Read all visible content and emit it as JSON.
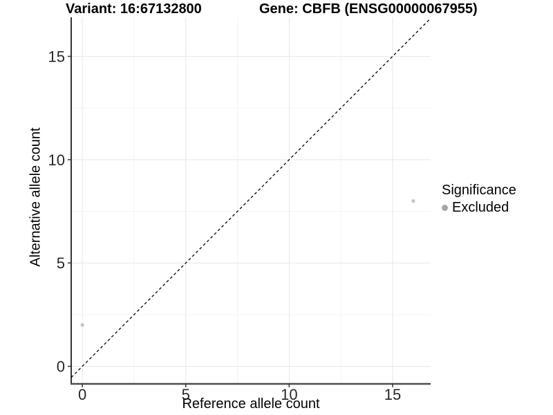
{
  "titles": {
    "left": "Variant: 16:67132800",
    "right": "Gene: CBFB (ENSG00000067955)"
  },
  "chart_data": {
    "type": "scatter",
    "xlabel": "Reference allele count",
    "ylabel": "Alternative allele count",
    "xlim": [
      -0.54,
      16.84
    ],
    "ylim": [
      -0.85,
      16.89
    ],
    "x_ticks": [
      0,
      5,
      10,
      15
    ],
    "y_ticks": [
      0,
      5,
      10,
      15
    ],
    "x_minor_gridlines": [
      2.5,
      7.5,
      12.5
    ],
    "y_minor_gridlines": [
      2.5,
      7.5,
      12.5
    ],
    "grid": "major and minor gridlines on white panel",
    "series": [
      {
        "name": "Excluded",
        "points": [
          {
            "x": 0,
            "y": 2
          },
          {
            "x": 16,
            "y": 8
          }
        ]
      }
    ],
    "identity_line": {
      "equation": "y = x",
      "style": "dashed",
      "color": "#000000"
    },
    "legend": {
      "title": "Significance",
      "position": "right",
      "entries": [
        {
          "label": "Excluded",
          "color": "#a6a6a6"
        }
      ]
    }
  },
  "colors": {
    "background": "#ffffff",
    "point": "#c2c2c2",
    "grid_major": "#e7e7e7",
    "grid_minor": "#f4f4f4",
    "y_axis_line": "#000000",
    "x_axis_line": "#4d4d4d",
    "tick_mark": "#333333",
    "tick_text": "#262626"
  }
}
